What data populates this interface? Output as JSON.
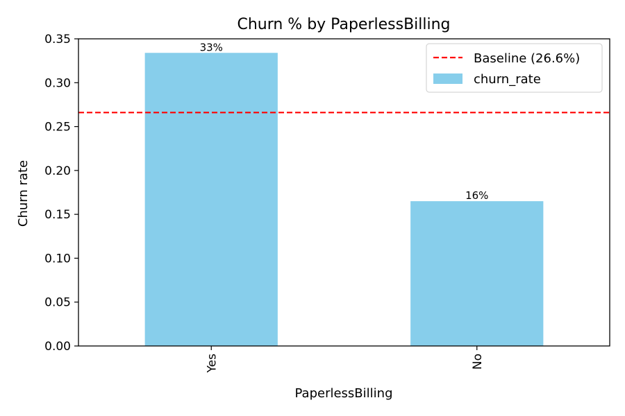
{
  "chart_data": {
    "type": "bar",
    "title": "Churn % by PaperlessBilling",
    "xlabel": "PaperlessBilling",
    "ylabel": "Churn rate",
    "categories": [
      "Yes",
      "No"
    ],
    "series": [
      {
        "name": "churn_rate",
        "values": [
          0.334,
          0.165
        ],
        "color": "#87CEEB"
      }
    ],
    "data_labels": [
      "33%",
      "16%"
    ],
    "baseline": {
      "value": 0.266,
      "label": "Baseline (26.6%)",
      "color": "#FF0000",
      "style": "dashed"
    },
    "ylim": [
      0,
      0.35
    ],
    "yticks": [
      0.0,
      0.05,
      0.1,
      0.15,
      0.2,
      0.25,
      0.3,
      0.35
    ],
    "ytick_labels": [
      "0.00",
      "0.05",
      "0.10",
      "0.15",
      "0.20",
      "0.25",
      "0.30",
      "0.35"
    ],
    "legend_position": "top-right",
    "grid": false
  }
}
